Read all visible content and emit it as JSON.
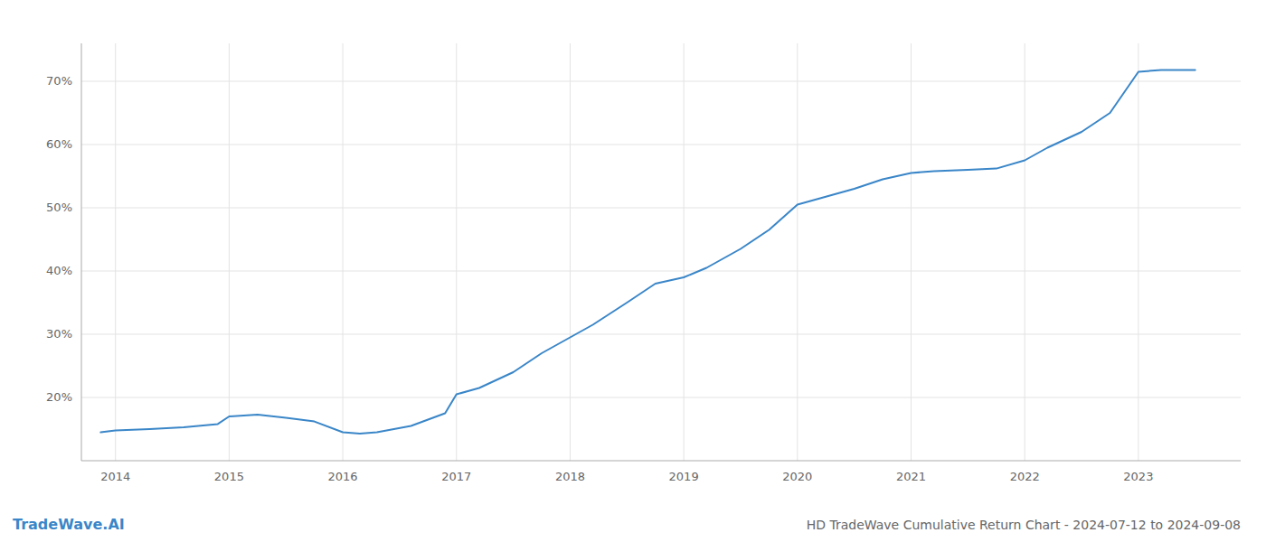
{
  "chart_data": {
    "type": "line",
    "title": "HD TradeWave Cumulative Return Chart - 2024-07-12 to 2024-09-08",
    "annotations": [
      "TradeWave.AI"
    ],
    "x": [
      2013.87,
      2014.0,
      2014.3,
      2014.6,
      2014.9,
      2015.0,
      2015.25,
      2015.5,
      2015.75,
      2016.0,
      2016.15,
      2016.3,
      2016.6,
      2016.9,
      2017.0,
      2017.2,
      2017.5,
      2017.75,
      2018.0,
      2018.2,
      2018.5,
      2018.75,
      2019.0,
      2019.2,
      2019.5,
      2019.75,
      2020.0,
      2020.2,
      2020.5,
      2020.75,
      2021.0,
      2021.2,
      2021.5,
      2021.75,
      2022.0,
      2022.2,
      2022.5,
      2022.75,
      2023.0,
      2023.2,
      2023.5
    ],
    "values": [
      14.5,
      14.8,
      15.0,
      15.3,
      15.8,
      17.0,
      17.3,
      16.8,
      16.2,
      14.5,
      14.3,
      14.5,
      15.5,
      17.5,
      20.5,
      21.5,
      24.0,
      27.0,
      29.5,
      31.5,
      35.0,
      38.0,
      39.0,
      40.5,
      43.5,
      46.5,
      50.5,
      51.5,
      53.0,
      54.5,
      55.5,
      55.8,
      56.0,
      56.2,
      57.5,
      59.5,
      62.0,
      65.0,
      71.5,
      71.8,
      71.8
    ],
    "color": "#3a86c8",
    "xlim": [
      2013.7,
      2023.9
    ],
    "ylim": [
      10.0,
      76.0
    ],
    "xticks": [
      2014,
      2015,
      2016,
      2017,
      2018,
      2019,
      2020,
      2021,
      2022,
      2023
    ],
    "yticks": [
      {
        "value": 20,
        "label": "20%"
      },
      {
        "value": 30,
        "label": "30%"
      },
      {
        "value": 40,
        "label": "40%"
      },
      {
        "value": 50,
        "label": "50%"
      },
      {
        "value": 60,
        "label": "60%"
      },
      {
        "value": 70,
        "label": "70%"
      }
    ],
    "grid": true
  }
}
